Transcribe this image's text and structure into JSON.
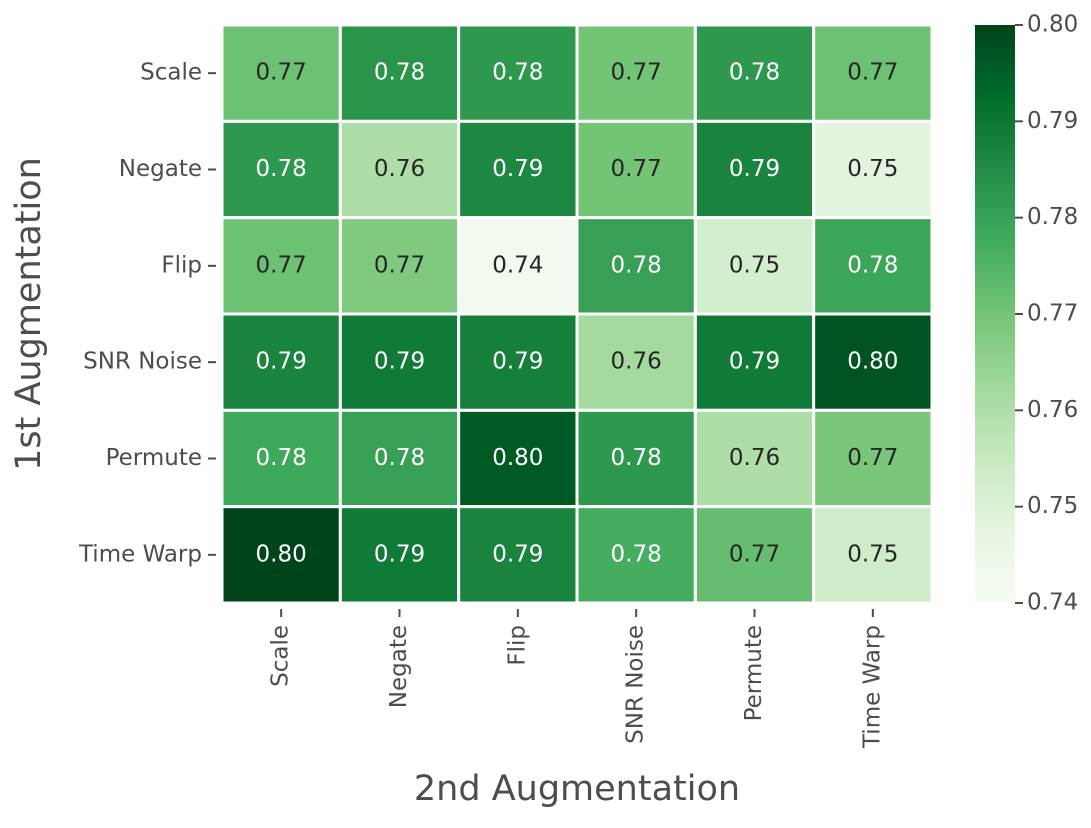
{
  "chart_data": {
    "type": "heatmap",
    "xlabel": "2nd Augmentation",
    "ylabel": "1st Augmentation",
    "x_categories": [
      "Scale",
      "Negate",
      "Flip",
      "SNR Noise",
      "Permute",
      "Time Warp"
    ],
    "y_categories": [
      "Scale",
      "Negate",
      "Flip",
      "SNR Noise",
      "Permute",
      "Time Warp"
    ],
    "values": [
      [
        0.771,
        0.783,
        0.782,
        0.77,
        0.782,
        0.771
      ],
      [
        0.782,
        0.76,
        0.786,
        0.77,
        0.787,
        0.748
      ],
      [
        0.771,
        0.768,
        0.742,
        0.78,
        0.752,
        0.779
      ],
      [
        0.787,
        0.789,
        0.788,
        0.762,
        0.789,
        0.797
      ],
      [
        0.778,
        0.78,
        0.796,
        0.782,
        0.76,
        0.769
      ],
      [
        0.801,
        0.789,
        0.787,
        0.777,
        0.772,
        0.753
      ]
    ],
    "value_labels": [
      [
        "0.77",
        "0.78",
        "0.78",
        "0.77",
        "0.78",
        "0.77"
      ],
      [
        "0.78",
        "0.76",
        "0.79",
        "0.77",
        "0.79",
        "0.75"
      ],
      [
        "0.77",
        "0.77",
        "0.74",
        "0.78",
        "0.75",
        "0.78"
      ],
      [
        "0.79",
        "0.79",
        "0.79",
        "0.76",
        "0.79",
        "0.80"
      ],
      [
        "0.78",
        "0.78",
        "0.80",
        "0.78",
        "0.76",
        "0.77"
      ],
      [
        "0.80",
        "0.79",
        "0.79",
        "0.78",
        "0.77",
        "0.75"
      ]
    ],
    "colormap": "Greens",
    "zlim": [
      0.74,
      0.8
    ],
    "zticks": [
      0.74,
      0.75,
      0.76,
      0.77,
      0.78,
      0.79,
      {
        "value": 0.8,
        "label": "0.80"
      }
    ]
  }
}
